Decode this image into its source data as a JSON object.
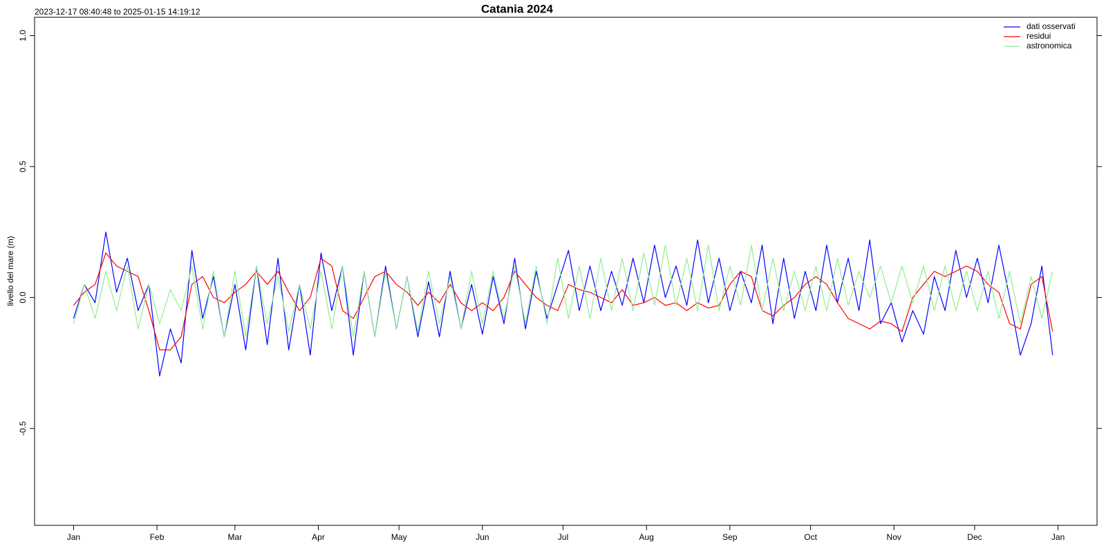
{
  "chart_data": {
    "type": "line",
    "title": "Catania 2024",
    "subtitle": "2023-12-17 08:40:48 to 2025-01-15 14:19:12",
    "y_label": "livello del mare (m)",
    "xlim": [
      -14.5,
      380.5
    ],
    "xticks": [
      {
        "value": 0,
        "label": "Jan"
      },
      {
        "value": 31,
        "label": "Feb"
      },
      {
        "value": 60,
        "label": "Mar"
      },
      {
        "value": 91,
        "label": "Apr"
      },
      {
        "value": 121,
        "label": "May"
      },
      {
        "value": 152,
        "label": "Jun"
      },
      {
        "value": 182,
        "label": "Jul"
      },
      {
        "value": 213,
        "label": "Aug"
      },
      {
        "value": 244,
        "label": "Sep"
      },
      {
        "value": 274,
        "label": "Oct"
      },
      {
        "value": 305,
        "label": "Nov"
      },
      {
        "value": 335,
        "label": "Dec"
      },
      {
        "value": 366,
        "label": "Jan"
      }
    ],
    "ylim": [
      -0.87,
      1.07
    ],
    "yticks": [
      -0.5,
      {
        "value": 0,
        "label": "0.0"
      },
      0.5,
      {
        "value": 1,
        "label": "1.0"
      }
    ],
    "legend": "top-right",
    "x": [
      0,
      4,
      8,
      12,
      16,
      20,
      24,
      28,
      32,
      36,
      40,
      44,
      48,
      52,
      56,
      60,
      64,
      68,
      72,
      76,
      80,
      84,
      88,
      92,
      96,
      100,
      104,
      108,
      112,
      116,
      120,
      124,
      128,
      132,
      136,
      140,
      144,
      148,
      152,
      156,
      160,
      164,
      168,
      172,
      176,
      180,
      184,
      188,
      192,
      196,
      200,
      204,
      208,
      212,
      216,
      220,
      224,
      228,
      232,
      236,
      240,
      244,
      248,
      252,
      256,
      260,
      264,
      268,
      272,
      276,
      280,
      284,
      288,
      292,
      296,
      300,
      304,
      308,
      312,
      316,
      320,
      324,
      328,
      332,
      336,
      340,
      344,
      348,
      352,
      356,
      360,
      364
    ],
    "series": [
      {
        "name": "dati osservati",
        "color": "#0000ff",
        "values": [
          -0.08,
          0.05,
          -0.02,
          0.25,
          0.02,
          0.15,
          -0.05,
          0.05,
          -0.3,
          -0.12,
          -0.25,
          0.18,
          -0.08,
          0.08,
          -0.15,
          0.05,
          -0.2,
          0.12,
          -0.18,
          0.15,
          -0.2,
          0.05,
          -0.22,
          0.17,
          -0.05,
          0.12,
          -0.22,
          0.1,
          -0.15,
          0.12,
          -0.12,
          0.08,
          -0.15,
          0.06,
          -0.15,
          0.1,
          -0.12,
          0.05,
          -0.14,
          0.08,
          -0.1,
          0.15,
          -0.12,
          0.1,
          -0.08,
          0.05,
          0.18,
          -0.05,
          0.12,
          -0.05,
          0.1,
          -0.03,
          0.15,
          -0.02,
          0.2,
          0.0,
          0.12,
          -0.03,
          0.22,
          -0.02,
          0.15,
          -0.05,
          0.1,
          -0.02,
          0.2,
          -0.1,
          0.15,
          -0.08,
          0.1,
          -0.05,
          0.2,
          -0.02,
          0.15,
          -0.05,
          0.22,
          -0.1,
          -0.02,
          -0.17,
          -0.05,
          -0.14,
          0.08,
          -0.05,
          0.18,
          0.0,
          0.15,
          -0.02,
          0.2,
          0.0,
          -0.22,
          -0.1,
          0.12,
          -0.22
        ]
      },
      {
        "name": "residui",
        "color": "#ff0000",
        "values": [
          -0.03,
          0.02,
          0.05,
          0.17,
          0.12,
          0.1,
          0.08,
          -0.05,
          -0.2,
          -0.2,
          -0.15,
          0.05,
          0.08,
          0.0,
          -0.02,
          0.02,
          0.05,
          0.1,
          0.05,
          0.1,
          0.02,
          -0.05,
          0.0,
          0.15,
          0.12,
          -0.05,
          -0.08,
          0.0,
          0.08,
          0.1,
          0.05,
          0.02,
          -0.03,
          0.02,
          -0.02,
          0.05,
          -0.02,
          -0.05,
          -0.02,
          -0.05,
          0.0,
          0.1,
          0.05,
          0.0,
          -0.03,
          -0.05,
          0.05,
          0.03,
          0.02,
          0.0,
          -0.02,
          0.03,
          -0.03,
          -0.02,
          0.0,
          -0.03,
          -0.02,
          -0.05,
          -0.02,
          -0.04,
          -0.03,
          0.05,
          0.1,
          0.08,
          -0.05,
          -0.07,
          -0.03,
          0.0,
          0.05,
          0.08,
          0.05,
          -0.02,
          -0.08,
          -0.1,
          -0.12,
          -0.09,
          -0.1,
          -0.13,
          0.0,
          0.05,
          0.1,
          0.08,
          0.1,
          0.12,
          0.1,
          0.05,
          0.02,
          -0.1,
          -0.12,
          0.05,
          0.08,
          -0.13
        ]
      },
      {
        "name": "astronomica",
        "color": "#90ee90",
        "values": [
          -0.1,
          0.05,
          -0.08,
          0.1,
          -0.05,
          0.12,
          -0.12,
          0.05,
          -0.1,
          0.03,
          -0.05,
          0.12,
          -0.12,
          0.1,
          -0.15,
          0.1,
          -0.15,
          0.12,
          -0.1,
          0.08,
          -0.13,
          0.05,
          -0.12,
          0.1,
          -0.12,
          0.12,
          -0.15,
          0.1,
          -0.15,
          0.1,
          -0.12,
          0.08,
          -0.13,
          0.1,
          -0.1,
          0.08,
          -0.12,
          0.1,
          -0.1,
          0.1,
          -0.08,
          0.12,
          -0.1,
          0.12,
          -0.1,
          0.15,
          -0.08,
          0.12,
          -0.08,
          0.15,
          -0.05,
          0.15,
          -0.05,
          0.17,
          -0.03,
          0.2,
          -0.03,
          0.15,
          -0.05,
          0.2,
          -0.05,
          0.12,
          -0.03,
          0.2,
          -0.05,
          0.15,
          -0.05,
          0.1,
          -0.05,
          0.12,
          -0.05,
          0.15,
          -0.03,
          0.1,
          0.0,
          0.12,
          -0.02,
          0.12,
          -0.02,
          0.12,
          -0.05,
          0.12,
          -0.05,
          0.1,
          -0.05,
          0.1,
          -0.08,
          0.1,
          -0.1,
          0.08,
          -0.08,
          0.1
        ]
      }
    ]
  }
}
